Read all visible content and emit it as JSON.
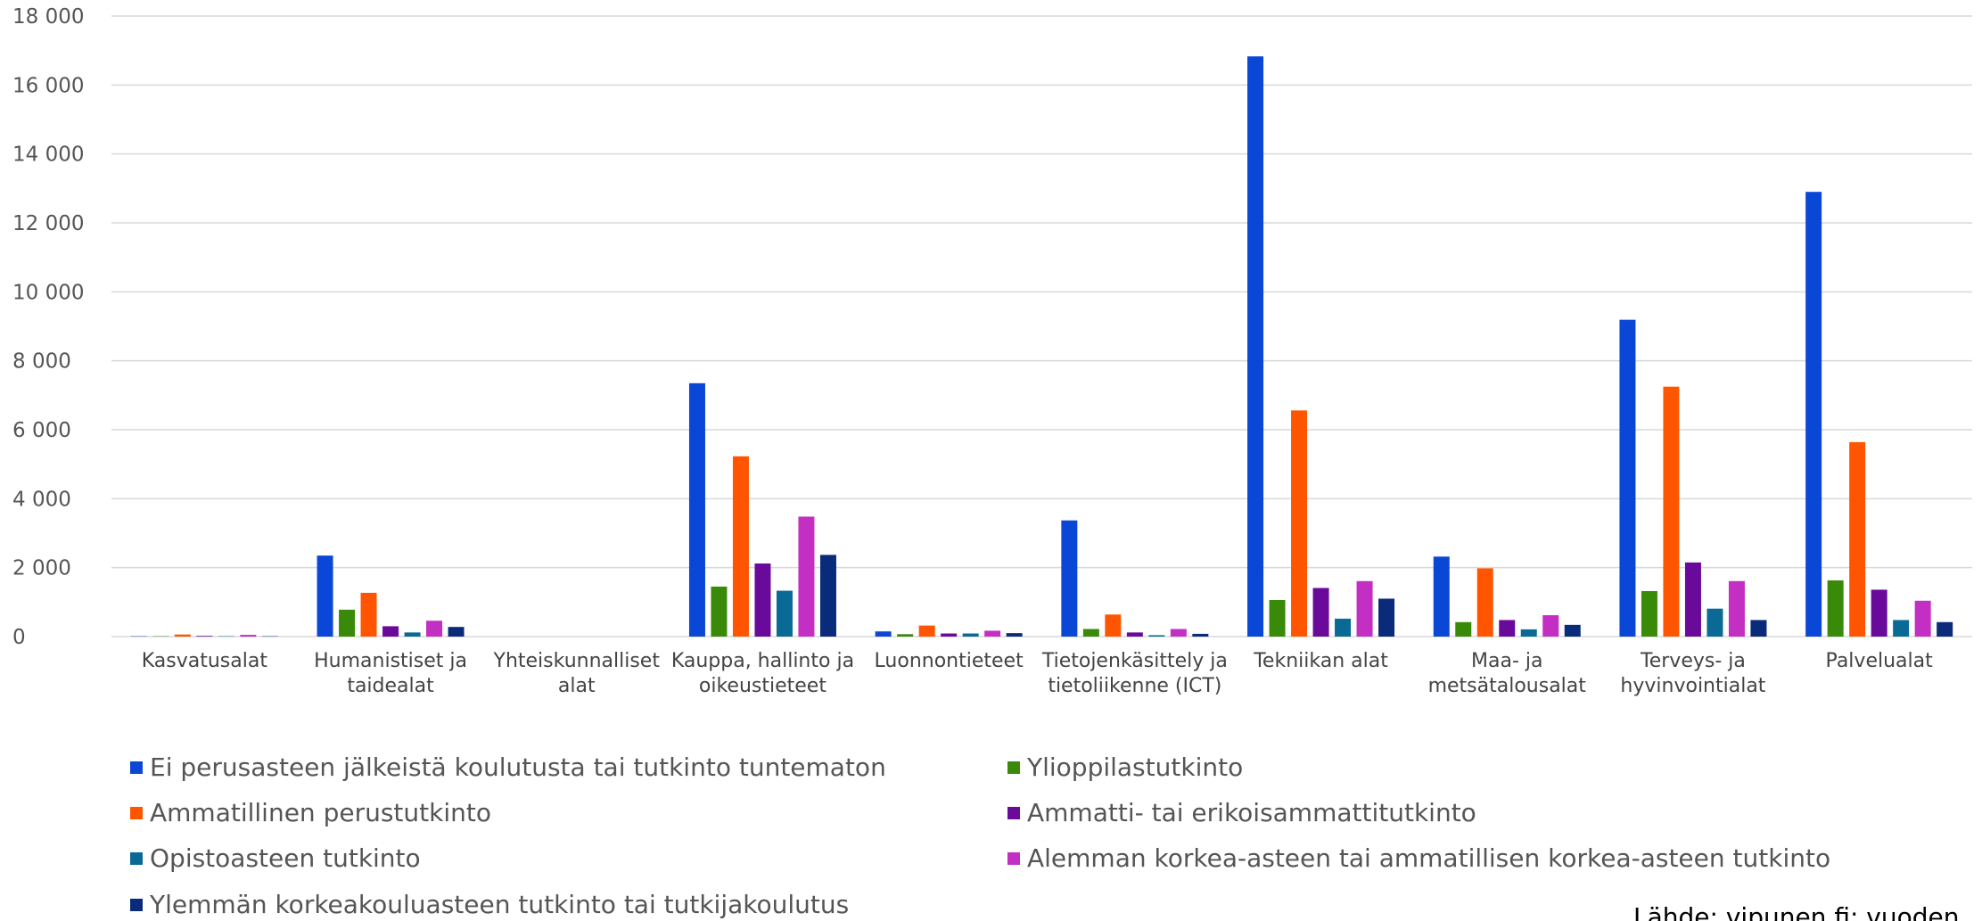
{
  "chart_data": {
    "type": "bar",
    "categories": [
      "Kasvatusalat",
      "Humanistiset ja taidealat",
      "Yhteiskunnalliset alat",
      "Kauppa, hallinto ja oikeustieteet",
      "Luonnontieteet",
      "Tietojenkäsittely ja tietoliikenne (ICT)",
      "Tekniikan alat",
      "Maa- ja metsätalousalat",
      "Terveys- ja hyvinvointialat",
      "Palvelualat"
    ],
    "series": [
      {
        "name": "Ei perusasteen jälkeistä koulutusta tai tutkinto tuntematon",
        "color": "#0a47d6",
        "values": [
          10,
          2350,
          0,
          7350,
          150,
          3370,
          16830,
          2320,
          9190,
          12900
        ]
      },
      {
        "name": "Ylioppilastutkinto",
        "color": "#3a8a0a",
        "values": [
          10,
          780,
          0,
          1450,
          70,
          220,
          1060,
          420,
          1320,
          1630
        ]
      },
      {
        "name": "Ammatillinen perustutkinto",
        "color": "#ff5500",
        "values": [
          60,
          1270,
          0,
          5230,
          320,
          640,
          6560,
          1980,
          7250,
          5640
        ]
      },
      {
        "name": "Ammatti- tai erikoisammattitutkinto",
        "color": "#6a0a9a",
        "values": [
          20,
          300,
          0,
          2120,
          90,
          120,
          1410,
          480,
          2150,
          1360
        ]
      },
      {
        "name": "Opistoasteen tutkinto",
        "color": "#0a6a96",
        "values": [
          10,
          120,
          0,
          1330,
          90,
          40,
          520,
          210,
          810,
          480
        ]
      },
      {
        "name": "Alemman korkea-asteen tai ammatillisen korkea-asteen tutkinto",
        "color": "#c32ec3",
        "values": [
          50,
          460,
          0,
          3480,
          170,
          220,
          1610,
          620,
          1610,
          1040
        ]
      },
      {
        "name": "Ylemmän korkeakouluasteen tutkinto tai tutkijakoulutus",
        "color": "#0a2a7a",
        "values": [
          10,
          280,
          0,
          2370,
          100,
          80,
          1100,
          340,
          480,
          420
        ]
      }
    ],
    "ylim": [
      0,
      18000
    ],
    "yticks": [
      0,
      {
        "value": 2000,
        "label": "2 000"
      },
      {
        "value": 4000,
        "label": "4 000"
      },
      {
        "value": 6000,
        "label": "6 000"
      },
      {
        "value": 8000,
        "label": "8 000"
      },
      {
        "value": 10000,
        "label": "10 000"
      },
      {
        "value": 12000,
        "label": "12 000"
      },
      {
        "value": 14000,
        "label": "14 000"
      },
      {
        "value": 16000,
        "label": "16 000"
      },
      {
        "value": 18000,
        "label": "18 000"
      }
    ],
    "grid": true,
    "legend": "bottom",
    "source": "Lähde: vipunen.fi; vuoden"
  }
}
